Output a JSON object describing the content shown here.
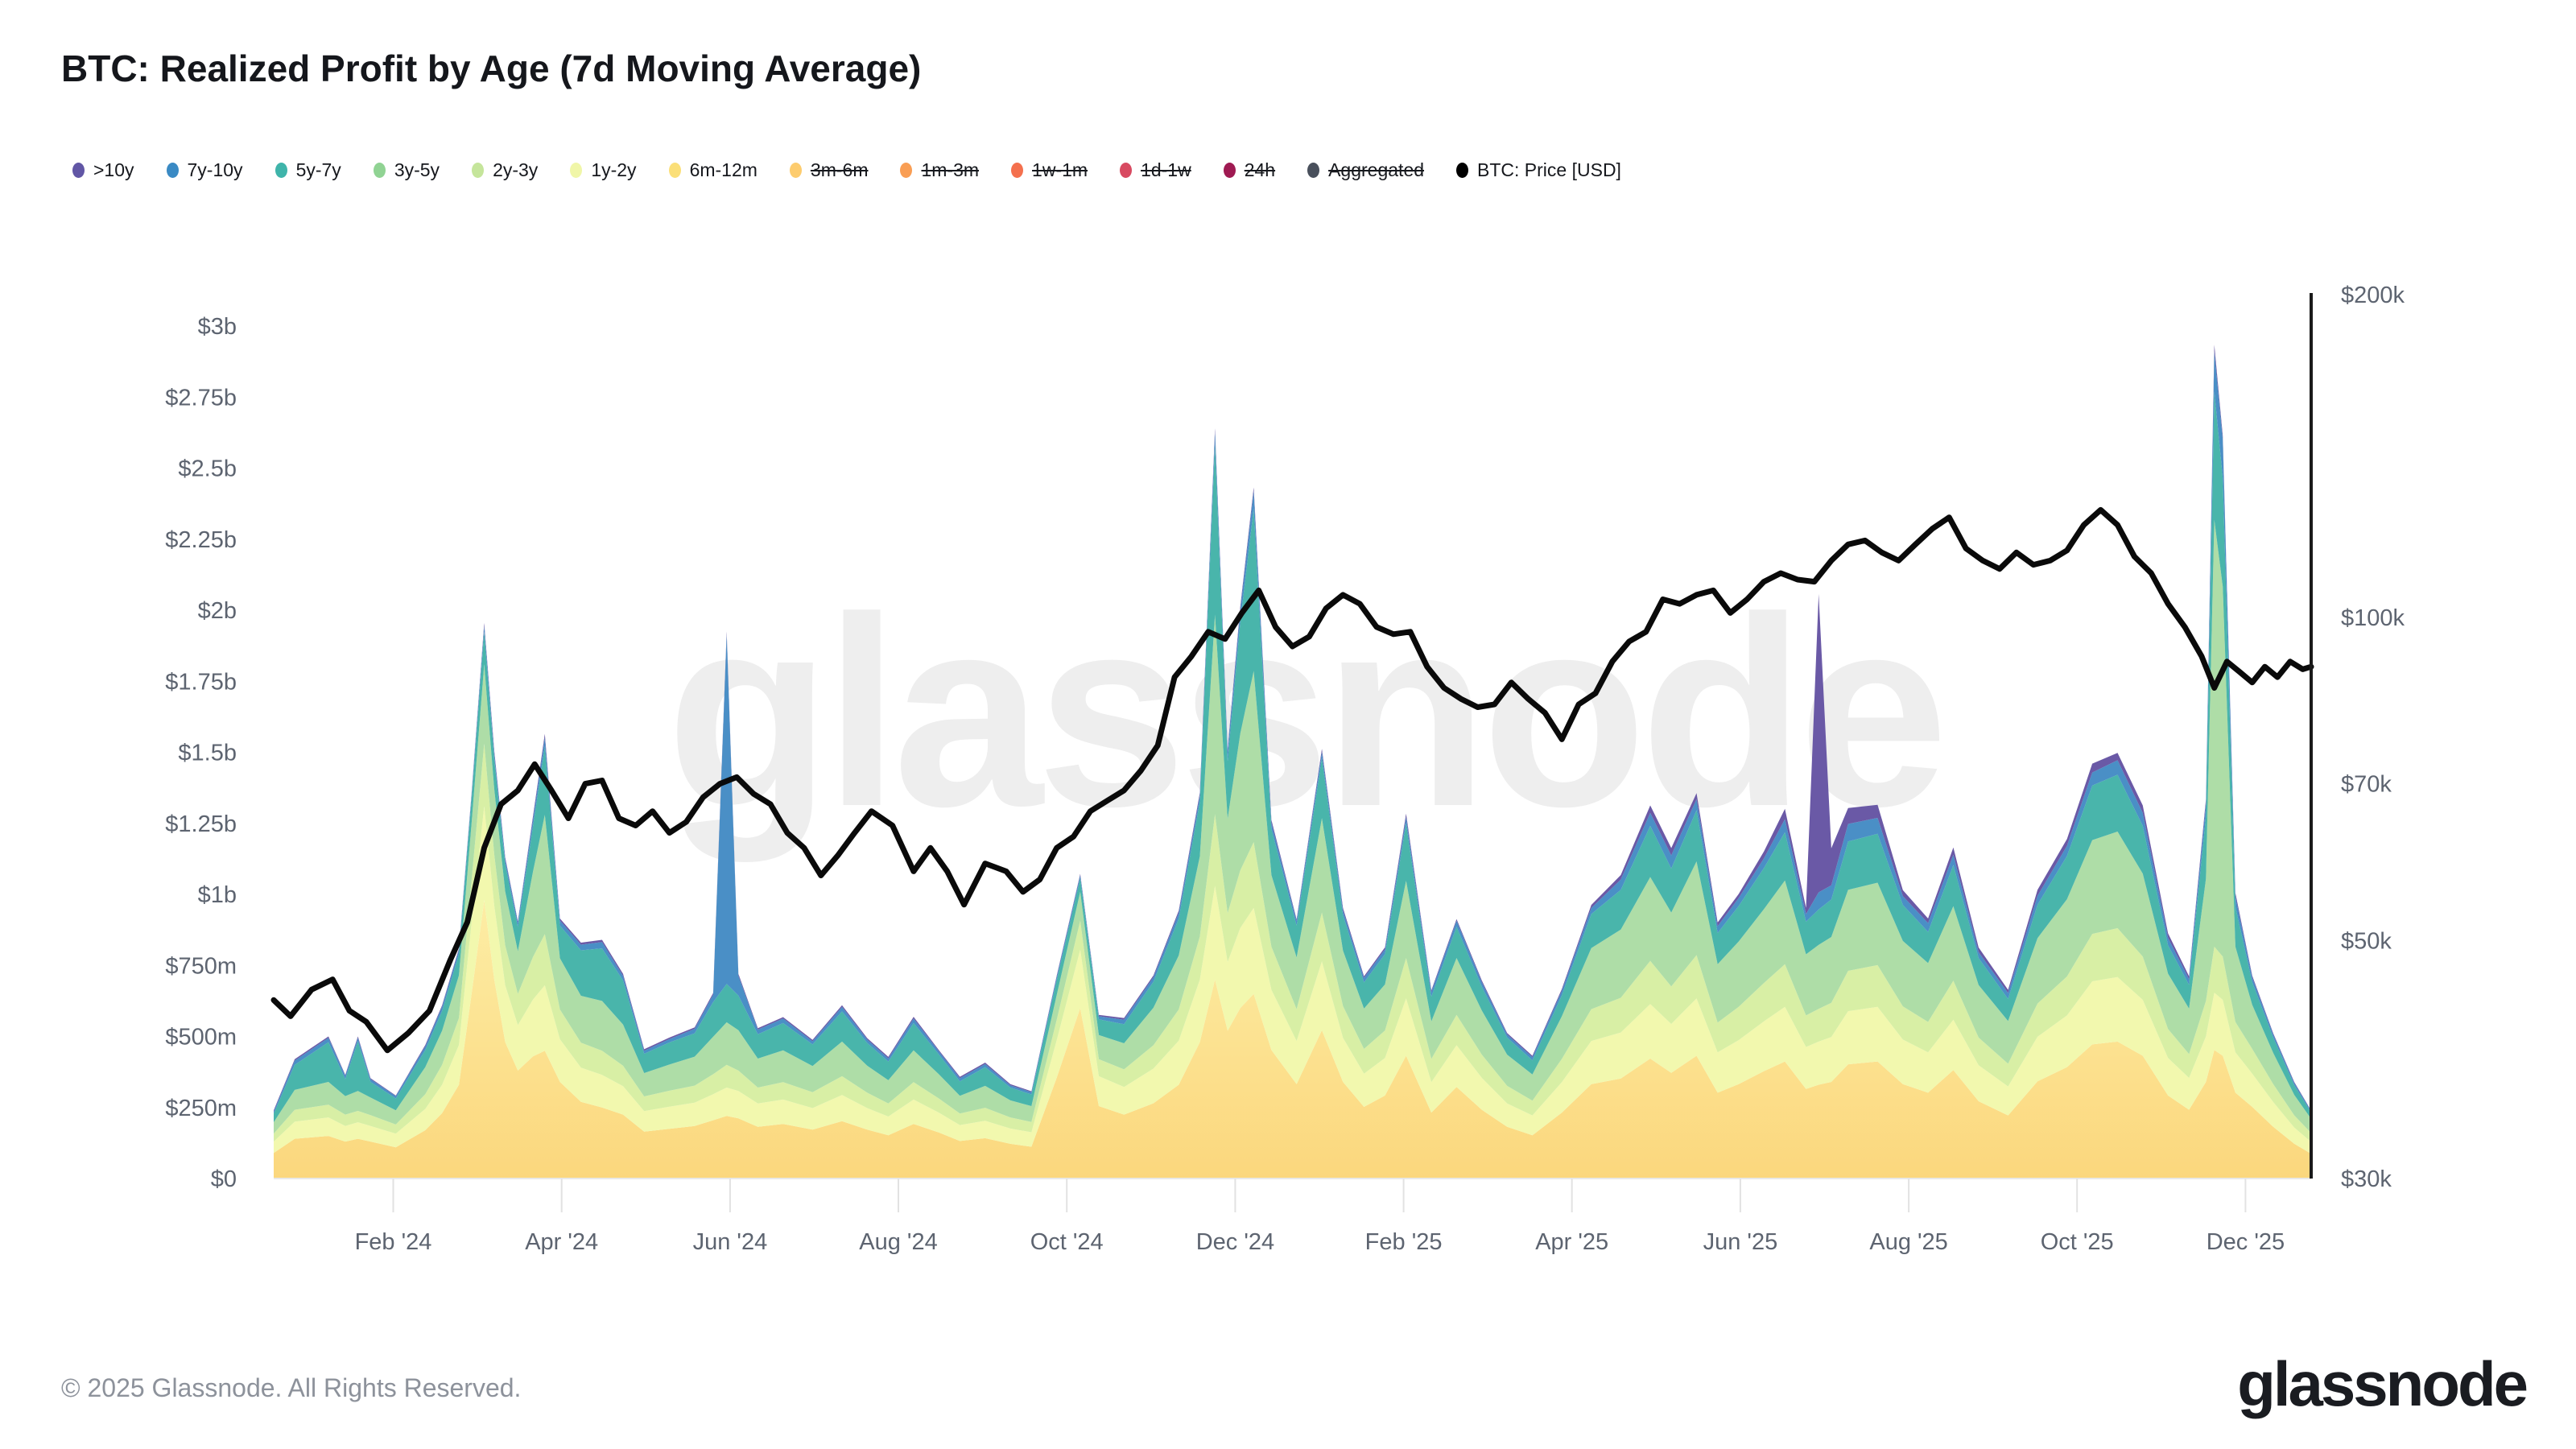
{
  "header": {
    "title": "BTC: Realized Profit by Age (7d Moving Average)"
  },
  "watermark": "glassnode",
  "footer": {
    "copyright": "© 2025 Glassnode. All Rights Reserved.",
    "brand": "glassnode"
  },
  "legend": {
    "position": "top",
    "items": [
      {
        "label": ">10y",
        "color": "#6156a5",
        "disabled": false
      },
      {
        "label": "7y-10y",
        "color": "#3a8ac4",
        "disabled": false
      },
      {
        "label": "5y-7y",
        "color": "#3fb4aa",
        "disabled": false
      },
      {
        "label": "3y-5y",
        "color": "#90d393",
        "disabled": false
      },
      {
        "label": "2y-3y",
        "color": "#c5e59b",
        "disabled": false
      },
      {
        "label": "1y-2y",
        "color": "#f0f6a8",
        "disabled": false
      },
      {
        "label": "6m-12m",
        "color": "#fbdf78",
        "disabled": false
      },
      {
        "label": "3m-6m",
        "color": "#fdcc6e",
        "disabled": true
      },
      {
        "label": "1m-3m",
        "color": "#f99e54",
        "disabled": true
      },
      {
        "label": "1w-1m",
        "color": "#f4704e",
        "disabled": true
      },
      {
        "label": "1d-1w",
        "color": "#d84a61",
        "disabled": true
      },
      {
        "label": "24h",
        "color": "#9f1a52",
        "disabled": true
      },
      {
        "label": "Aggregated",
        "color": "#49505c",
        "disabled": true
      },
      {
        "label": "BTC: Price [USD]",
        "color": "#000000",
        "disabled": false
      }
    ]
  },
  "chart_data": {
    "type": "area",
    "stacking": "stacked",
    "title": "BTC: Realized Profit by Age (7d Moving Average)",
    "xlabel": "",
    "ylabel": "",
    "grid": false,
    "legend_position": "top",
    "x_axis": {
      "tick_labels": [
        "Feb '24",
        "Apr '24",
        "Jun '24",
        "Aug '24",
        "Oct '24",
        "Dec '24",
        "Feb '25",
        "Apr '25",
        "Jun '25",
        "Aug '25",
        "Oct '25",
        "Dec '25"
      ],
      "domain_months": 24.2,
      "first_tick_month": 1.42,
      "tick_interval_months": 2
    },
    "left_axis": {
      "title": "Realized Profit (USD)",
      "scale": "linear",
      "range_musd": [
        0,
        3000
      ],
      "tick_labels": [
        "$3b",
        "$2.75b",
        "$2.5b",
        "$2.25b",
        "$2b",
        "$1.75b",
        "$1.5b",
        "$1.25b",
        "$1b",
        "$750m",
        "$500m",
        "$250m",
        "$0"
      ],
      "tick_values_musd": [
        3000,
        2750,
        2500,
        2250,
        2000,
        1750,
        1500,
        1250,
        1000,
        750,
        500,
        250,
        0
      ]
    },
    "right_axis": {
      "title": "BTC Price (USD)",
      "scale": "log",
      "range_kusd": [
        30,
        200
      ],
      "tick_labels": [
        "$200k",
        "$100k",
        "$70k",
        "$50k",
        "$30k"
      ],
      "tick_values_kusd": [
        200,
        100,
        70,
        50,
        30
      ]
    },
    "sample_t_months": [
      0.0,
      0.25,
      0.65,
      0.85,
      1.0,
      1.15,
      1.45,
      1.8,
      2.0,
      2.2,
      2.35,
      2.5,
      2.62,
      2.75,
      2.9,
      3.08,
      3.22,
      3.4,
      3.65,
      3.9,
      4.15,
      4.4,
      4.7,
      5.0,
      5.22,
      5.38,
      5.52,
      5.75,
      6.05,
      6.4,
      6.75,
      7.05,
      7.3,
      7.6,
      7.9,
      8.15,
      8.45,
      8.75,
      9.0,
      9.3,
      9.58,
      9.8,
      10.1,
      10.45,
      10.75,
      11.0,
      11.18,
      11.33,
      11.48,
      11.64,
      11.85,
      12.15,
      12.45,
      12.7,
      12.95,
      13.2,
      13.45,
      13.75,
      14.05,
      14.35,
      14.65,
      14.95,
      15.3,
      15.65,
      16.0,
      16.35,
      16.6,
      16.9,
      17.15,
      17.4,
      17.7,
      17.95,
      18.2,
      18.35,
      18.5,
      18.7,
      19.05,
      19.35,
      19.65,
      19.95,
      20.25,
      20.6,
      20.95,
      21.3,
      21.6,
      21.9,
      22.2,
      22.5,
      22.75,
      22.95,
      23.05,
      23.15,
      23.3,
      23.5,
      23.75,
      24.0,
      24.2
    ],
    "series": [
      {
        "name": "6m-12m",
        "color_top": "#fdeda5",
        "color_bottom": "#fbd77d",
        "color": "#fbe18a",
        "values_musd": [
          90,
          140,
          150,
          130,
          140,
          130,
          110,
          170,
          230,
          330,
          650,
          980,
          700,
          480,
          380,
          430,
          450,
          340,
          270,
          250,
          225,
          165,
          175,
          185,
          205,
          220,
          212,
          182,
          192,
          172,
          202,
          172,
          152,
          192,
          162,
          132,
          142,
          122,
          112,
          355,
          600,
          255,
          225,
          265,
          330,
          480,
          700,
          520,
          600,
          650,
          452,
          332,
          522,
          340,
          252,
          292,
          432,
          232,
          322,
          242,
          182,
          152,
          232,
          332,
          352,
          422,
          372,
          432,
          302,
          332,
          378,
          412,
          315,
          330,
          340,
          402,
          412,
          332,
          302,
          382,
          272,
          222,
          342,
          392,
          472,
          482,
          432,
          292,
          242,
          340,
          452,
          432,
          302,
          252,
          182,
          122,
          87
        ]
      },
      {
        "name": "1y-2y",
        "color": "#f2f8ae",
        "values_musd": [
          40,
          60,
          65,
          55,
          58,
          55,
          48,
          75,
          100,
          140,
          250,
          330,
          260,
          200,
          160,
          200,
          230,
          150,
          120,
          115,
          100,
          72,
          78,
          82,
          92,
          100,
          96,
          82,
          86,
          76,
          92,
          76,
          66,
          86,
          70,
          56,
          61,
          54,
          51,
          132,
          205,
          105,
          97,
          122,
          155,
          220,
          330,
          242,
          282,
          302,
          212,
          152,
          242,
          155,
          117,
          132,
          202,
          107,
          147,
          112,
          82,
          70,
          107,
          152,
          162,
          192,
          172,
          202,
          142,
          155,
          175,
          192,
          148,
          152,
          158,
          187,
          192,
          157,
          142,
          177,
          127,
          102,
          157,
          182,
          222,
          227,
          197,
          132,
          112,
          160,
          202,
          197,
          142,
          117,
          87,
          57,
          42
        ]
      },
      {
        "name": "2y-3y",
        "color": "#d8efa5",
        "values_musd": [
          28,
          42,
          45,
          40,
          40,
          38,
          32,
          52,
          70,
          95,
          150,
          220,
          180,
          140,
          110,
          150,
          180,
          105,
          88,
          85,
          72,
          52,
          56,
          60,
          70,
          80,
          72,
          56,
          61,
          56,
          66,
          54,
          46,
          61,
          50,
          41,
          46,
          39,
          36,
          72,
          102,
          60,
          62,
          82,
          110,
          152,
          252,
          172,
          202,
          232,
          152,
          112,
          172,
          112,
          87,
          97,
          142,
          82,
          107,
          82,
          62,
          52,
          82,
          112,
          122,
          152,
          132,
          152,
          105,
          117,
          135,
          150,
          111,
          115,
          120,
          142,
          147,
          117,
          107,
          137,
          97,
          80,
          117,
          137,
          167,
          172,
          152,
          102,
          84,
          125,
          162,
          152,
          107,
          87,
          63,
          43,
          31
        ]
      },
      {
        "name": "3y-5y",
        "color": "#aedda7",
        "values_musd": [
          40,
          70,
          80,
          65,
          70,
          62,
          50,
          95,
          120,
          150,
          200,
          280,
          230,
          190,
          150,
          300,
          420,
          180,
          165,
          175,
          145,
          82,
          92,
          102,
          132,
          150,
          142,
          102,
          112,
          92,
          122,
          95,
          82,
          112,
          85,
          62,
          77,
          60,
          56,
          87,
          102,
          85,
          92,
          132,
          190,
          282,
          702,
          332,
          482,
          602,
          252,
          182,
          332,
          195,
          142,
          162,
          272,
          132,
          200,
          155,
          110,
          92,
          150,
          215,
          240,
          295,
          260,
          330,
          205,
          230,
          260,
          295,
          215,
          225,
          232,
          285,
          290,
          230,
          207,
          262,
          185,
          150,
          230,
          272,
          330,
          340,
          292,
          195,
          160,
          430,
          1502,
          1302,
          265,
          155,
          110,
          72,
          50
        ]
      },
      {
        "name": "5y-7y",
        "color": "#49b5ab",
        "values_musd": [
          30,
          88,
          140,
          60,
          175,
          55,
          42,
          60,
          70,
          75,
          85,
          115,
          105,
          95,
          85,
          160,
          240,
          115,
          160,
          185,
          155,
          68,
          78,
          82,
          122,
          135,
          122,
          86,
          96,
          76,
          106,
          80,
          66,
          96,
          70,
          51,
          66,
          45,
          41,
          52,
          47,
          55,
          67,
          92,
          130,
          192,
          602,
          202,
          392,
          572,
          162,
          112,
          212,
          125,
          92,
          107,
          202,
          87,
          110,
          84,
          60,
          50,
          74,
          120,
          140,
          180,
          155,
          180,
          110,
          125,
          145,
          170,
          115,
          125,
          132,
          170,
          172,
          127,
          110,
          145,
          95,
          78,
          118,
          152,
          192,
          200,
          168,
          100,
          84,
          220,
          452,
          382,
          140,
          80,
          54,
          34,
          22
        ]
      },
      {
        "name": "7y-10y",
        "color": "#4a8fc6",
        "values_musd": [
          8,
          15,
          15,
          12,
          12,
          10,
          8,
          13,
          15,
          15,
          15,
          20,
          20,
          18,
          15,
          25,
          32,
          18,
          20,
          22,
          16,
          11,
          12,
          16,
          26,
          1230,
          70,
          16,
          16,
          11,
          16,
          12,
          11,
          16,
          11,
          11,
          11,
          8,
          8,
          11,
          11,
          11,
          16,
          16,
          20,
          22,
          42,
          32,
          42,
          62,
          22,
          16,
          22,
          17,
          16,
          17,
          22,
          16,
          21,
          16,
          11,
          11,
          16,
          21,
          36,
          46,
          46,
          39,
          24,
          28,
          34,
          46,
          27,
          60,
          50,
          62,
          56,
          31,
          31,
          36,
          21,
          21,
          31,
          36,
          46,
          51,
          46,
          26,
          19,
          45,
          142,
          137,
          37,
          17,
          11,
          8,
          5
        ]
      },
      {
        "name": ">10y",
        "color": "#6a59a6",
        "values_musd": [
          4,
          5,
          5,
          3,
          5,
          3,
          2,
          5,
          5,
          5,
          5,
          10,
          10,
          7,
          5,
          10,
          13,
          7,
          7,
          8,
          7,
          5,
          5,
          5,
          6,
          10,
          6,
          5,
          5,
          5,
          6,
          5,
          5,
          6,
          4,
          5,
          5,
          4,
          3,
          5,
          5,
          5,
          6,
          6,
          8,
          10,
          12,
          10,
          12,
          12,
          10,
          6,
          10,
          8,
          6,
          7,
          12,
          6,
          6,
          6,
          5,
          5,
          6,
          11,
          16,
          26,
          26,
          21,
          13,
          14,
          24,
          36,
          21,
          1050,
          130,
          56,
          46,
          21,
          16,
          26,
          16,
          11,
          21,
          24,
          31,
          26,
          26,
          16,
          11,
          15,
          22,
          12,
          12,
          6,
          4,
          3,
          2
        ]
      }
    ],
    "price_series": {
      "name": "BTC: Price [USD]",
      "color": "#0a0a0a",
      "t_months": [
        0.0,
        0.2,
        0.45,
        0.7,
        0.9,
        1.1,
        1.35,
        1.6,
        1.85,
        2.1,
        2.3,
        2.5,
        2.7,
        2.9,
        3.1,
        3.3,
        3.5,
        3.7,
        3.9,
        4.1,
        4.3,
        4.5,
        4.7,
        4.9,
        5.1,
        5.3,
        5.5,
        5.7,
        5.9,
        6.1,
        6.3,
        6.5,
        6.7,
        6.9,
        7.1,
        7.35,
        7.6,
        7.8,
        8.0,
        8.2,
        8.45,
        8.7,
        8.9,
        9.1,
        9.3,
        9.5,
        9.7,
        9.9,
        10.1,
        10.3,
        10.5,
        10.7,
        10.9,
        11.1,
        11.3,
        11.5,
        11.7,
        11.9,
        12.1,
        12.3,
        12.5,
        12.7,
        12.9,
        13.1,
        13.3,
        13.5,
        13.7,
        13.9,
        14.1,
        14.3,
        14.5,
        14.7,
        14.9,
        15.1,
        15.3,
        15.5,
        15.7,
        15.9,
        16.1,
        16.3,
        16.5,
        16.7,
        16.9,
        17.1,
        17.3,
        17.5,
        17.7,
        17.9,
        18.1,
        18.3,
        18.5,
        18.7,
        18.9,
        19.1,
        19.3,
        19.5,
        19.7,
        19.9,
        20.1,
        20.3,
        20.5,
        20.7,
        20.9,
        21.1,
        21.3,
        21.5,
        21.7,
        21.9,
        22.1,
        22.3,
        22.5,
        22.7,
        22.9,
        23.05,
        23.2,
        23.35,
        23.5,
        23.65,
        23.8,
        23.95,
        24.1,
        24.2
      ],
      "values_kusd": [
        44,
        42.5,
        45,
        46,
        43,
        42,
        39.5,
        41,
        43,
        48,
        52,
        61,
        67,
        69,
        73,
        69,
        65,
        70,
        70.5,
        65,
        64,
        66,
        63,
        64.5,
        68,
        70,
        71,
        68.5,
        67,
        63,
        61,
        57.5,
        60,
        63,
        66,
        64,
        58,
        61,
        58,
        54,
        59,
        58,
        55.5,
        57,
        61,
        62.5,
        66,
        67.5,
        69,
        72,
        76,
        88,
        92,
        97,
        95.5,
        101,
        106,
        98,
        94,
        96,
        102,
        105,
        103,
        98,
        96.5,
        97,
        90,
        86,
        84,
        82.5,
        83,
        87,
        84,
        81.5,
        77,
        83,
        85,
        91,
        95,
        97,
        104,
        103,
        105,
        106,
        101,
        104,
        108,
        110,
        108.5,
        108,
        113,
        117,
        118,
        115,
        113,
        117,
        121,
        124,
        116,
        113,
        111,
        115,
        112,
        113,
        115.5,
        122,
        126,
        122,
        114,
        110,
        103,
        98,
        92,
        86,
        91,
        89,
        87,
        90,
        88,
        91,
        89.5,
        90
      ]
    }
  }
}
